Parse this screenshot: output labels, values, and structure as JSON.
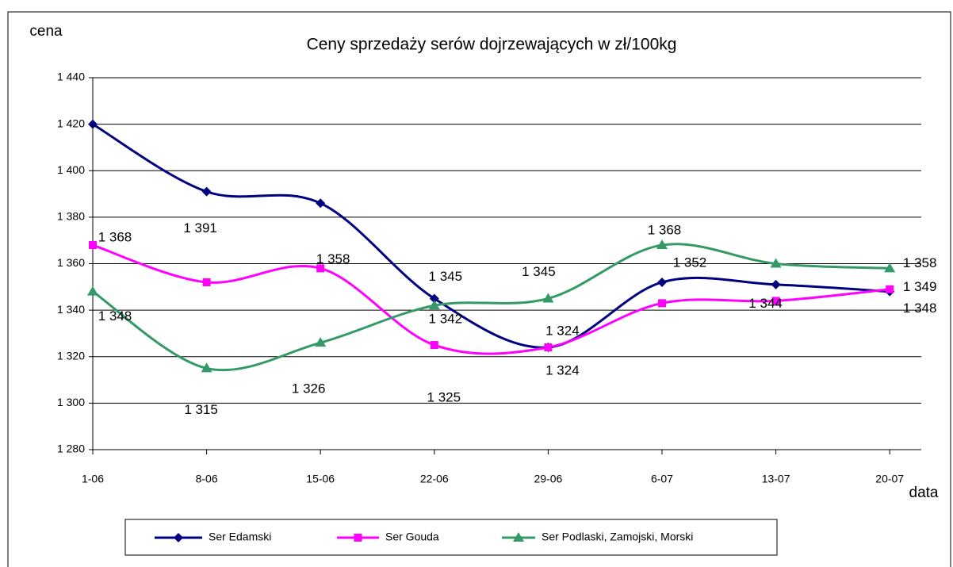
{
  "chart_data": {
    "type": "line",
    "title": "Ceny sprzedaży serów dojrzewających w zł/100kg",
    "y_label": "cena",
    "x_label": "data",
    "categories": [
      "1-06",
      "8-06",
      "15-06",
      "22-06",
      "29-06",
      "6-07",
      "13-07",
      "20-07"
    ],
    "ylim": [
      1280,
      1440
    ],
    "yticks": [
      {
        "value": 1280,
        "label": "1 280"
      },
      {
        "value": 1300,
        "label": "1 300"
      },
      {
        "value": 1320,
        "label": "1 320"
      },
      {
        "value": 1340,
        "label": "1 340"
      },
      {
        "value": 1360,
        "label": "1 360"
      },
      {
        "value": 1380,
        "label": "1 380"
      },
      {
        "value": 1400,
        "label": "1 400"
      },
      {
        "value": 1420,
        "label": "1 420"
      },
      {
        "value": 1440,
        "label": "1 440"
      }
    ],
    "grid": true,
    "legend": "bottom",
    "series": [
      {
        "name": "Ser Edamski",
        "color": "#000080",
        "marker": "diamond",
        "values": [
          1420,
          1391,
          1386,
          1345,
          1324,
          1352,
          1351,
          1348
        ],
        "value_labels": [
          null,
          "1 391",
          null,
          "1 345",
          "1 324",
          "1 352",
          null,
          "1 348"
        ]
      },
      {
        "name": "Ser Gouda",
        "color": "#ff00ff",
        "marker": "square",
        "values": [
          1368,
          1352,
          1358,
          1325,
          1324,
          1343,
          1344,
          1349
        ],
        "value_labels": [
          "1 368",
          null,
          "1 358",
          "1 325",
          "1 324",
          null,
          "1 344",
          "1 349"
        ]
      },
      {
        "name": "Ser Podlaski, Zamojski, Morski",
        "color": "#339966",
        "marker": "triangle",
        "values": [
          1348,
          1315,
          1326,
          1342,
          1345,
          1368,
          1360,
          1358
        ],
        "value_labels": [
          "1 348",
          "1 315",
          "1 326",
          "1 342",
          "1 345",
          "1 368",
          null,
          "1 358"
        ]
      }
    ]
  }
}
